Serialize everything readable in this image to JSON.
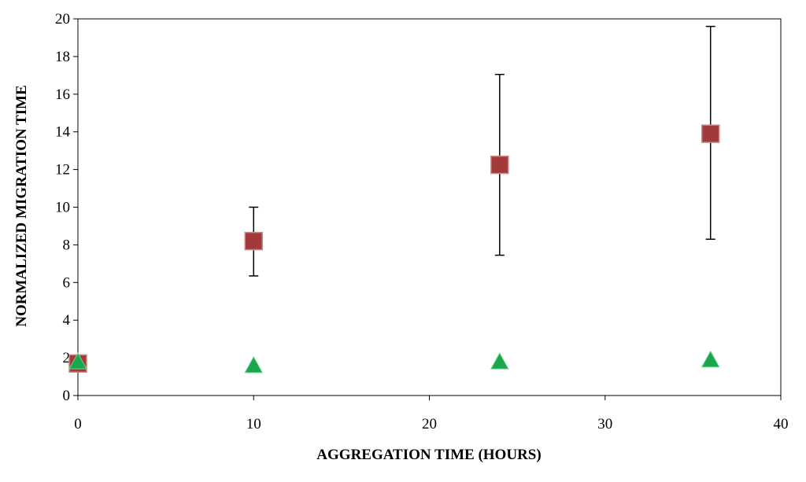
{
  "chart_data": {
    "type": "scatter",
    "title": "",
    "xlabel": "AGGREGATION TIME (HOURS)",
    "ylabel": "NORMALIZED MIGRATION TIME",
    "xlim": [
      0,
      40
    ],
    "ylim": [
      0,
      20
    ],
    "x_ticks": [
      0,
      10,
      20,
      30,
      40
    ],
    "y_ticks": [
      0,
      2,
      4,
      6,
      8,
      10,
      12,
      14,
      16,
      18,
      20
    ],
    "grid": false,
    "legend": "none",
    "series": [
      {
        "marker": "square",
        "color": "#a33a3a",
        "points": [
          {
            "x": 0,
            "y": 1.7
          },
          {
            "x": 10,
            "y": 8.2,
            "err_low": 6.35,
            "err_high": 10.0
          },
          {
            "x": 24,
            "y": 12.25,
            "err_low": 7.45,
            "err_high": 17.05
          },
          {
            "x": 36,
            "y": 13.9,
            "err_low": 8.3,
            "err_high": 19.6
          }
        ]
      },
      {
        "marker": "triangle",
        "color": "#1aa64a",
        "points": [
          {
            "x": 0,
            "y": 1.75
          },
          {
            "x": 10,
            "y": 1.55
          },
          {
            "x": 24,
            "y": 1.75
          },
          {
            "x": 36,
            "y": 1.85
          }
        ]
      }
    ]
  }
}
